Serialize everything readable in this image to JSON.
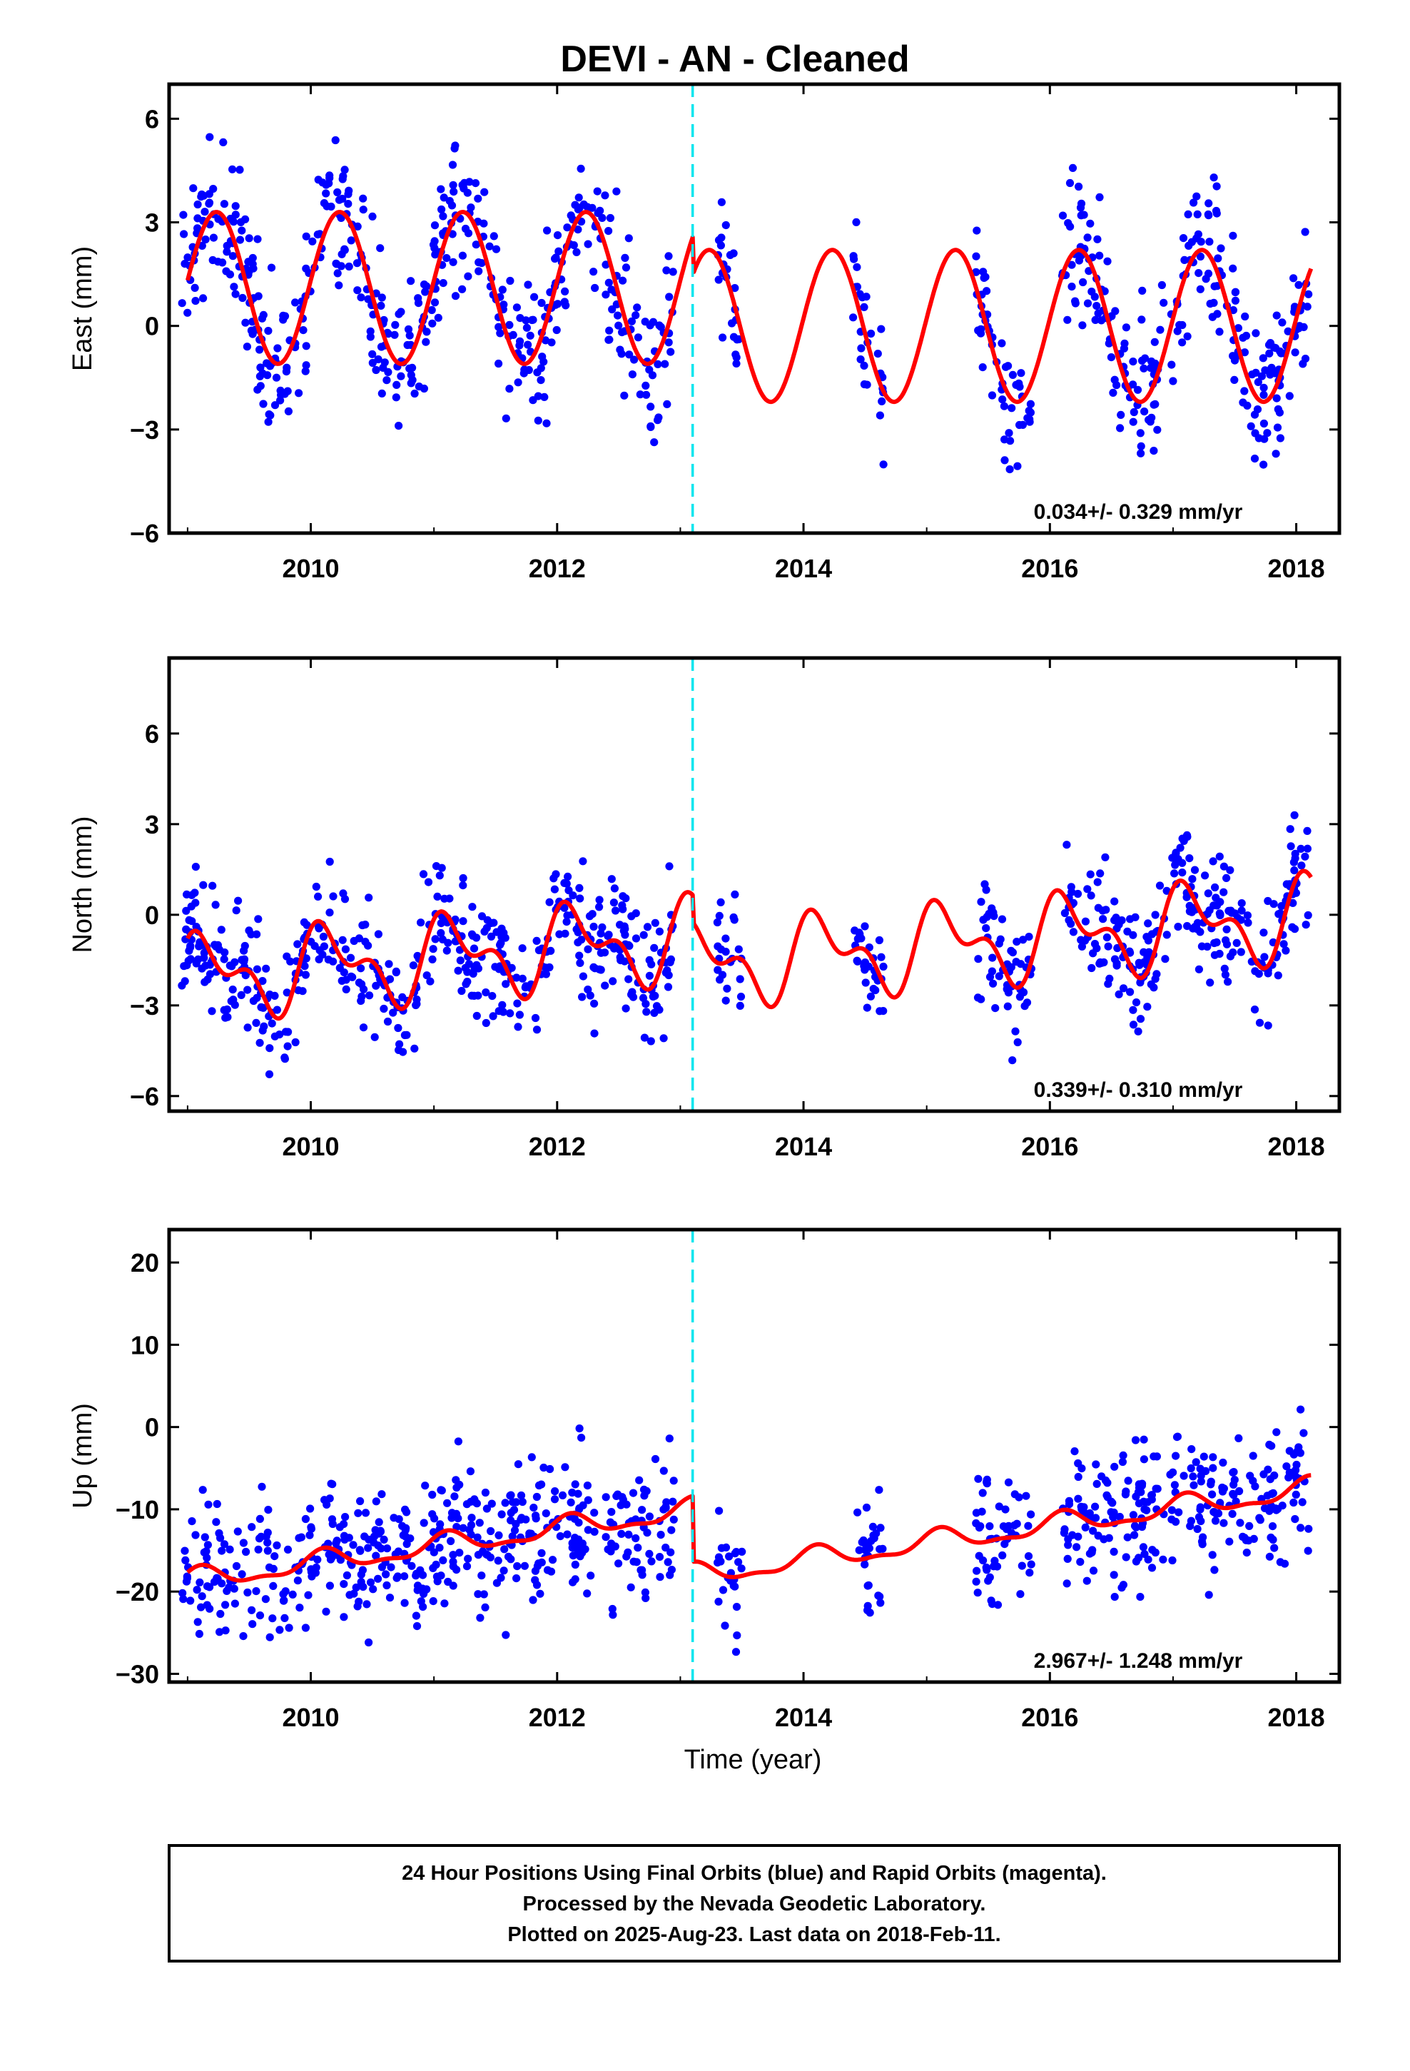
{
  "chart_data": {
    "title": "DEVI  - AN - Cleaned",
    "xlabel": "Time (year)",
    "xlim": [
      2008.85,
      2018.35
    ],
    "xticks": [
      2010,
      2012,
      2014,
      2016,
      2018
    ],
    "break_year": 2013.1,
    "colors": {
      "points": "#0000ff",
      "model": "#ff0000",
      "break": "#00e5ee",
      "frame": "#000000"
    },
    "panels": [
      {
        "type": "scatter",
        "component": "East",
        "ylabel": "East (mm)",
        "ylim": [
          -6,
          7
        ],
        "yticks": [
          6,
          3,
          0,
          -3,
          -6
        ],
        "ytick_labels": [
          "6",
          "3",
          "0",
          "−3",
          "−6"
        ],
        "rate": "0.034+/- 0.329 mm/yr",
        "seed": 11,
        "model": {
          "offset": 0.5,
          "trend": 0.0,
          "segments": [
            {
              "start": 2008.85,
              "end": 2013.1,
              "shift": 0.6,
              "amp1": 2.2,
              "phase1": 0.1,
              "amp2": 0.0,
              "phase2": 0.0
            },
            {
              "start": 2013.1,
              "end": 2018.35,
              "shift": -0.5,
              "amp1": 2.2,
              "phase1": 0.1,
              "amp2": 0.0,
              "phase2": 0.0
            }
          ]
        },
        "noise": 1.1,
        "observed_ranges": [
          [
            2008.95,
            2012.95
          ],
          [
            2013.3,
            2013.5
          ],
          [
            2014.4,
            2014.65
          ],
          [
            2015.4,
            2015.85
          ],
          [
            2016.1,
            2018.1
          ]
        ],
        "point_count": 820
      },
      {
        "type": "scatter",
        "component": "North",
        "ylabel": "North (mm)",
        "ylim": [
          -6.5,
          8.5
        ],
        "yticks": [
          6,
          3,
          0,
          -3,
          -6
        ],
        "ytick_labels": [
          "6",
          "3",
          "0",
          "−3",
          "−6"
        ],
        "rate": "0.339+/- 0.310 mm/yr",
        "seed": 23,
        "model": {
          "offset": -0.5,
          "trend": 0.32,
          "segments": [
            {
              "start": 2008.85,
              "end": 2013.1,
              "shift": -0.3,
              "amp1": 1.1,
              "phase1": 0.6,
              "amp2": 0.7,
              "phase2": 1.3
            },
            {
              "start": 2013.1,
              "end": 2018.35,
              "shift": -1.2,
              "amp1": 1.1,
              "phase1": 0.6,
              "amp2": 0.7,
              "phase2": 1.3
            }
          ]
        },
        "noise": 1.0,
        "observed_ranges": [
          [
            2008.95,
            2012.95
          ],
          [
            2013.3,
            2013.5
          ],
          [
            2014.4,
            2014.65
          ],
          [
            2015.4,
            2015.85
          ],
          [
            2016.1,
            2018.1
          ]
        ],
        "point_count": 820
      },
      {
        "type": "scatter",
        "component": "Up",
        "ylabel": "Up (mm)",
        "ylim": [
          -31,
          24
        ],
        "yticks": [
          20,
          10,
          0,
          -10,
          -20,
          -30
        ],
        "ytick_labels": [
          "20",
          "10",
          "0",
          "−10",
          "−20",
          "−30"
        ],
        "rate": "2.967+/- 1.248 mm/yr",
        "seed": 37,
        "model": {
          "offset": -10.5,
          "trend": 2.1,
          "segments": [
            {
              "start": 2008.85,
              "end": 2013.1,
              "shift": 0.2,
              "amp1": 1.2,
              "phase1": 0.9,
              "amp2": 0.5,
              "phase2": 0.2
            },
            {
              "start": 2013.1,
              "end": 2018.35,
              "shift": -7.8,
              "amp1": 1.2,
              "phase1": 0.9,
              "amp2": 0.5,
              "phase2": 0.2
            }
          ]
        },
        "noise": 4.2,
        "observed_ranges": [
          [
            2008.95,
            2012.95
          ],
          [
            2013.3,
            2013.5
          ],
          [
            2014.4,
            2014.65
          ],
          [
            2015.4,
            2015.85
          ],
          [
            2016.1,
            2018.1
          ]
        ],
        "point_count": 820
      }
    ]
  },
  "footer": {
    "line1": "24 Hour Positions Using Final Orbits (blue) and Rapid Orbits (magenta).",
    "line2": "Processed by the Nevada Geodetic Laboratory.",
    "line3": "Plotted on 2025-Aug-23. Last data on 2018-Feb-11."
  }
}
